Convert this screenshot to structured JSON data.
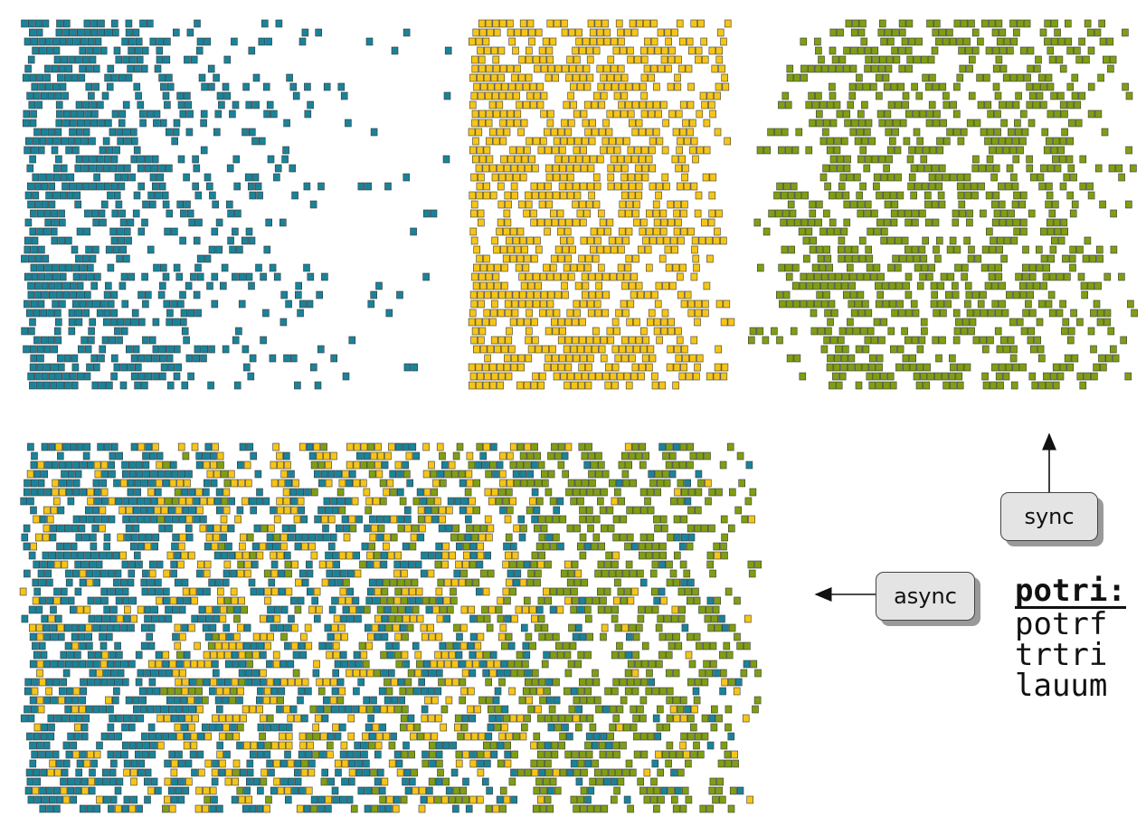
{
  "colors": {
    "potrf": "#1a8399",
    "trtri": "#f5c518",
    "lauum": "#7f9e13",
    "task_stroke": "#3a3a3a"
  },
  "labels": {
    "sync": "sync",
    "async": "async"
  },
  "legend": {
    "title": "potri:",
    "items": [
      "potrf",
      "trtri",
      "lauum"
    ]
  },
  "panels": [
    {
      "mode": "sync",
      "phase": "potrf"
    },
    {
      "mode": "sync",
      "phase": "trtri"
    },
    {
      "mode": "sync",
      "phase": "lauum"
    },
    {
      "mode": "async",
      "phase": "potrf+trtri+lauum"
    }
  ]
}
